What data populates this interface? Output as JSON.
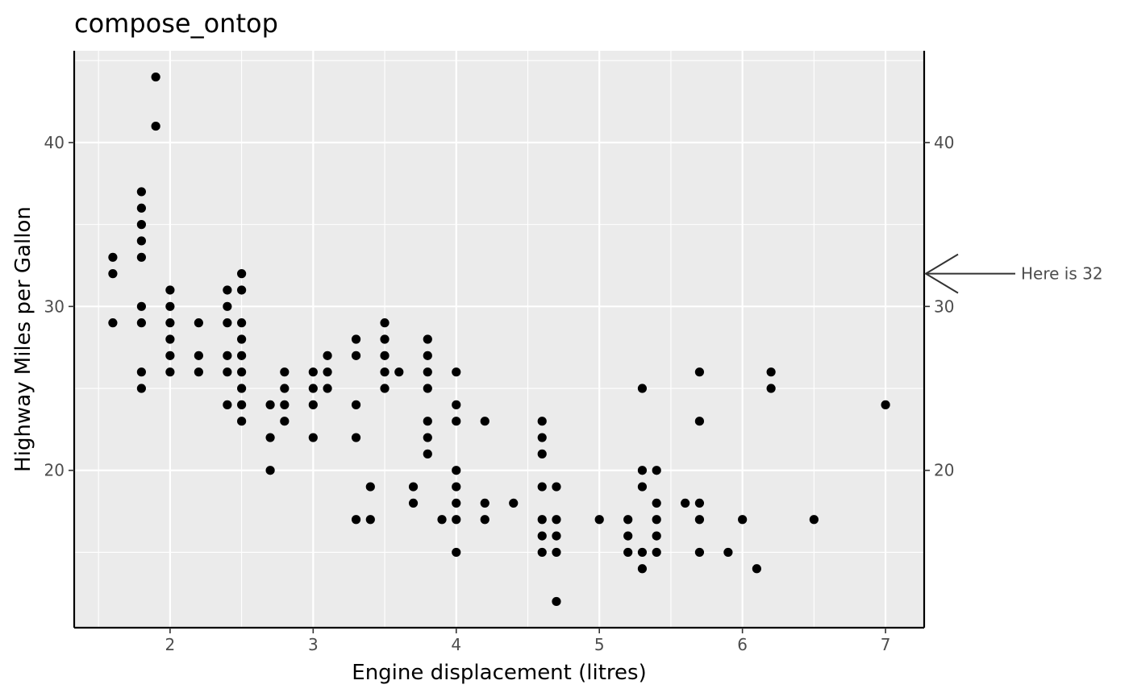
{
  "chart_data": {
    "type": "scatter",
    "title": "compose_ontop",
    "xlabel": "Engine displacement (litres)",
    "ylabel": "Highway Miles per Gallon",
    "xlim": [
      1.33,
      7.27
    ],
    "ylim": [
      10.4,
      45.6
    ],
    "x_ticks": [
      "2",
      "3",
      "4",
      "5",
      "6",
      "7"
    ],
    "y_ticks": [
      "20",
      "30",
      "40"
    ],
    "y2_ticks": [
      "20",
      "30",
      "40"
    ],
    "grid": true,
    "colors": {
      "panel": "#ebebeb",
      "grid": "#ffffff",
      "point": "#000000",
      "axis": "#000000",
      "annotation": "#333333"
    },
    "annotation": {
      "label": "Here is 32",
      "y": 32
    },
    "points": [
      [
        1.6,
        33
      ],
      [
        1.6,
        32
      ],
      [
        1.6,
        29
      ],
      [
        1.8,
        37
      ],
      [
        1.8,
        36
      ],
      [
        1.8,
        35
      ],
      [
        1.8,
        34
      ],
      [
        1.8,
        33
      ],
      [
        1.8,
        30
      ],
      [
        1.8,
        29
      ],
      [
        1.8,
        26
      ],
      [
        1.8,
        25
      ],
      [
        1.9,
        44
      ],
      [
        1.9,
        41
      ],
      [
        2.0,
        31
      ],
      [
        2.0,
        30
      ],
      [
        2.0,
        29
      ],
      [
        2.0,
        28
      ],
      [
        2.0,
        27
      ],
      [
        2.0,
        26
      ],
      [
        2.2,
        29
      ],
      [
        2.2,
        27
      ],
      [
        2.2,
        26
      ],
      [
        2.4,
        31
      ],
      [
        2.4,
        30
      ],
      [
        2.4,
        29
      ],
      [
        2.4,
        27
      ],
      [
        2.4,
        26
      ],
      [
        2.4,
        24
      ],
      [
        2.5,
        32
      ],
      [
        2.5,
        31
      ],
      [
        2.5,
        29
      ],
      [
        2.5,
        28
      ],
      [
        2.5,
        27
      ],
      [
        2.5,
        26
      ],
      [
        2.5,
        25
      ],
      [
        2.5,
        24
      ],
      [
        2.5,
        23
      ],
      [
        2.7,
        24
      ],
      [
        2.7,
        22
      ],
      [
        2.7,
        20
      ],
      [
        2.8,
        26
      ],
      [
        2.8,
        25
      ],
      [
        2.8,
        24
      ],
      [
        2.8,
        23
      ],
      [
        3.0,
        26
      ],
      [
        3.0,
        25
      ],
      [
        3.0,
        24
      ],
      [
        3.0,
        22
      ],
      [
        3.1,
        27
      ],
      [
        3.1,
        26
      ],
      [
        3.1,
        25
      ],
      [
        3.3,
        28
      ],
      [
        3.3,
        27
      ],
      [
        3.3,
        24
      ],
      [
        3.3,
        22
      ],
      [
        3.3,
        17
      ],
      [
        3.4,
        19
      ],
      [
        3.4,
        17
      ],
      [
        3.5,
        29
      ],
      [
        3.5,
        28
      ],
      [
        3.5,
        27
      ],
      [
        3.5,
        26
      ],
      [
        3.5,
        25
      ],
      [
        3.6,
        26
      ],
      [
        3.7,
        19
      ],
      [
        3.7,
        18
      ],
      [
        3.8,
        28
      ],
      [
        3.8,
        27
      ],
      [
        3.8,
        26
      ],
      [
        3.8,
        25
      ],
      [
        3.8,
        23
      ],
      [
        3.8,
        22
      ],
      [
        3.8,
        21
      ],
      [
        3.9,
        17
      ],
      [
        4.0,
        26
      ],
      [
        4.0,
        24
      ],
      [
        4.0,
        23
      ],
      [
        4.0,
        20
      ],
      [
        4.0,
        19
      ],
      [
        4.0,
        18
      ],
      [
        4.0,
        17
      ],
      [
        4.0,
        15
      ],
      [
        4.2,
        23
      ],
      [
        4.2,
        18
      ],
      [
        4.2,
        17
      ],
      [
        4.4,
        18
      ],
      [
        4.6,
        23
      ],
      [
        4.6,
        22
      ],
      [
        4.6,
        21
      ],
      [
        4.6,
        19
      ],
      [
        4.6,
        17
      ],
      [
        4.6,
        16
      ],
      [
        4.6,
        15
      ],
      [
        4.7,
        19
      ],
      [
        4.7,
        17
      ],
      [
        4.7,
        16
      ],
      [
        4.7,
        15
      ],
      [
        4.7,
        12
      ],
      [
        5.0,
        17
      ],
      [
        5.2,
        17
      ],
      [
        5.2,
        16
      ],
      [
        5.2,
        15
      ],
      [
        5.3,
        25
      ],
      [
        5.3,
        20
      ],
      [
        5.3,
        19
      ],
      [
        5.3,
        15
      ],
      [
        5.3,
        14
      ],
      [
        5.4,
        20
      ],
      [
        5.4,
        18
      ],
      [
        5.4,
        17
      ],
      [
        5.4,
        16
      ],
      [
        5.4,
        15
      ],
      [
        5.6,
        18
      ],
      [
        5.7,
        26
      ],
      [
        5.7,
        23
      ],
      [
        5.7,
        18
      ],
      [
        5.7,
        17
      ],
      [
        5.7,
        15
      ],
      [
        5.9,
        15
      ],
      [
        6.0,
        17
      ],
      [
        6.1,
        14
      ],
      [
        6.2,
        26
      ],
      [
        6.2,
        25
      ],
      [
        6.5,
        17
      ],
      [
        7.0,
        24
      ]
    ]
  }
}
